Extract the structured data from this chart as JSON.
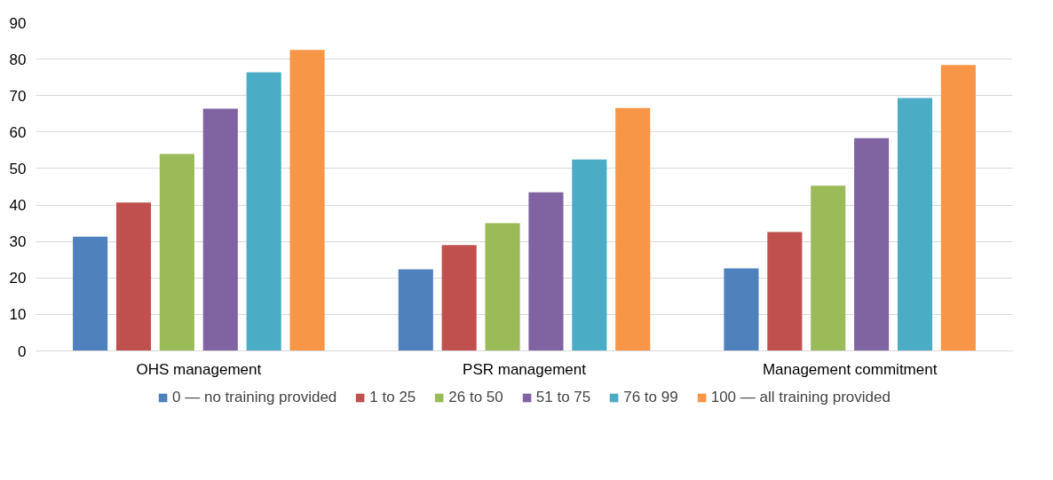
{
  "chart_data": {
    "type": "bar",
    "categories": [
      "OHS management",
      "PSR management",
      "Management commitment"
    ],
    "series": [
      {
        "name": "0 — no training provided",
        "color": "#4f81bd",
        "values": [
          31.3,
          22.4,
          22.6
        ]
      },
      {
        "name": "1 to 25",
        "color": "#c0504d",
        "values": [
          40.7,
          29,
          32.6
        ]
      },
      {
        "name": "26 to 50",
        "color": "#9bbb59",
        "values": [
          54,
          35,
          45.3
        ]
      },
      {
        "name": "51 to 75",
        "color": "#8064a2",
        "values": [
          66.4,
          43.5,
          58.3
        ]
      },
      {
        "name": "76 to 99",
        "color": "#4bacc6",
        "values": [
          76.4,
          52.5,
          69.3
        ]
      },
      {
        "name": "100 — all training provided",
        "color": "#f79646",
        "values": [
          82.5,
          66.6,
          78.4
        ]
      }
    ],
    "ylim": [
      0,
      90
    ],
    "yticks": [
      0,
      10,
      20,
      30,
      40,
      50,
      60,
      70,
      80,
      90
    ],
    "grid": "y",
    "legend": "bottom"
  }
}
